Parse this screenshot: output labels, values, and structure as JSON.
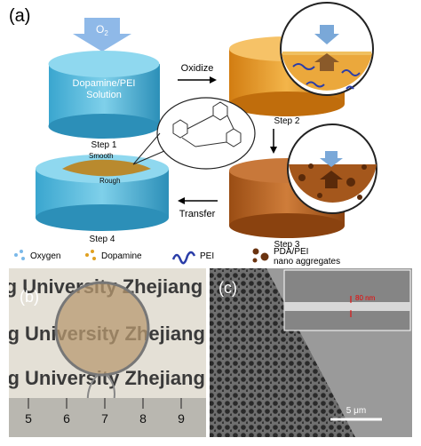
{
  "panel_a": {
    "label": "(a)",
    "oxygen": {
      "symbol": "O",
      "subscript": "2"
    },
    "solution_label": [
      "Dopamine/PEI",
      "Solution"
    ],
    "steps": [
      "Step 1",
      "Step 2",
      "Step 3",
      "Step 4"
    ],
    "arrows": [
      "Oxidize",
      "Transfer"
    ],
    "surface": [
      "Smooth",
      "Rough"
    ],
    "legend": [
      "Oxygen",
      "Dopamine",
      "PEI",
      "PDA/PEI",
      "nano aggregates"
    ]
  },
  "panel_b": {
    "label": "(b)",
    "background_text": [
      "ang University  Zhejiang",
      "ng University  Zhejiang",
      "ng University  Zhejiang"
    ],
    "ruler": [
      "5",
      "6",
      "7",
      "8",
      "9"
    ]
  },
  "panel_c": {
    "label": "(c)",
    "thickness": "80 nm",
    "scale_bar": "5 μm"
  }
}
